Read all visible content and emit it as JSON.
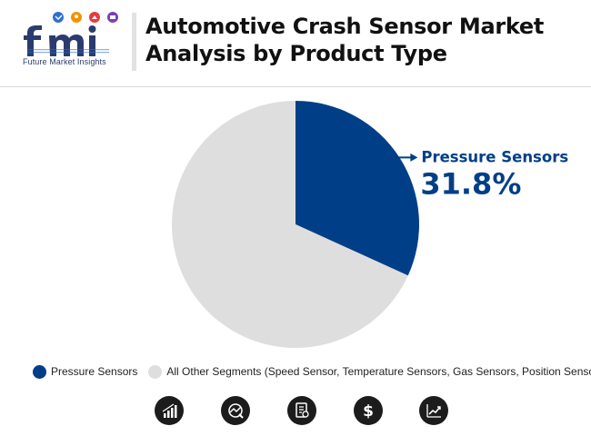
{
  "brand": {
    "subtitle": "Future Market Insights",
    "colors": {
      "navy": "#2a3b6e",
      "blue": "#2f6fd1",
      "orange": "#f39200",
      "red": "#e63c3c",
      "purple": "#7a3fb5"
    }
  },
  "header": {
    "title_line1": "Automotive Crash Sensor Market",
    "title_line2": "Analysis by Product Type"
  },
  "chart_data": {
    "type": "pie",
    "slices": [
      {
        "label": "Pressure Sensors",
        "value": 31.8,
        "color": "#003f87",
        "value_label": "31.8%"
      },
      {
        "label": "All Other Segments (Speed Sensor, Temperature Sensors, Gas Sensors, Position Sensors)",
        "value": 68.2,
        "color": "#dedede"
      }
    ],
    "start_angle_deg": 0,
    "direction": "clockwise",
    "legend_position": "bottom"
  },
  "footer_icons": [
    "bar-growth-icon",
    "gauge-chart-icon",
    "report-document-icon",
    "dollar-icon",
    "line-growth-icon"
  ]
}
